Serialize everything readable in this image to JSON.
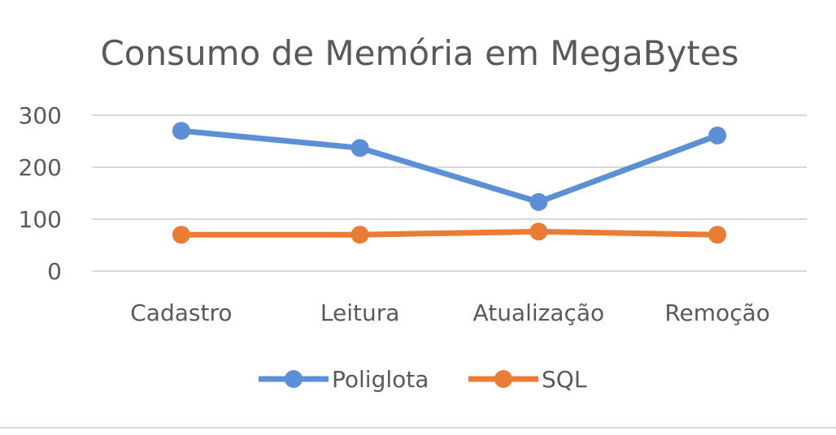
{
  "chart_data": {
    "type": "line",
    "title": "Consumo de Memória em MegaBytes",
    "categories": [
      "Cadastro",
      "Leitura",
      "Atualização",
      "Remoção"
    ],
    "ylim": [
      0,
      300
    ],
    "yticks": [
      "0",
      "100",
      "200",
      "300"
    ],
    "grid": true,
    "legend_position": "bottom",
    "series": [
      {
        "name": "Poliglota",
        "color": "#5b8fd6",
        "values": [
          270,
          237,
          133,
          261
        ]
      },
      {
        "name": "SQL",
        "color": "#ea7d35",
        "values": [
          70,
          70,
          76,
          70
        ]
      }
    ]
  }
}
